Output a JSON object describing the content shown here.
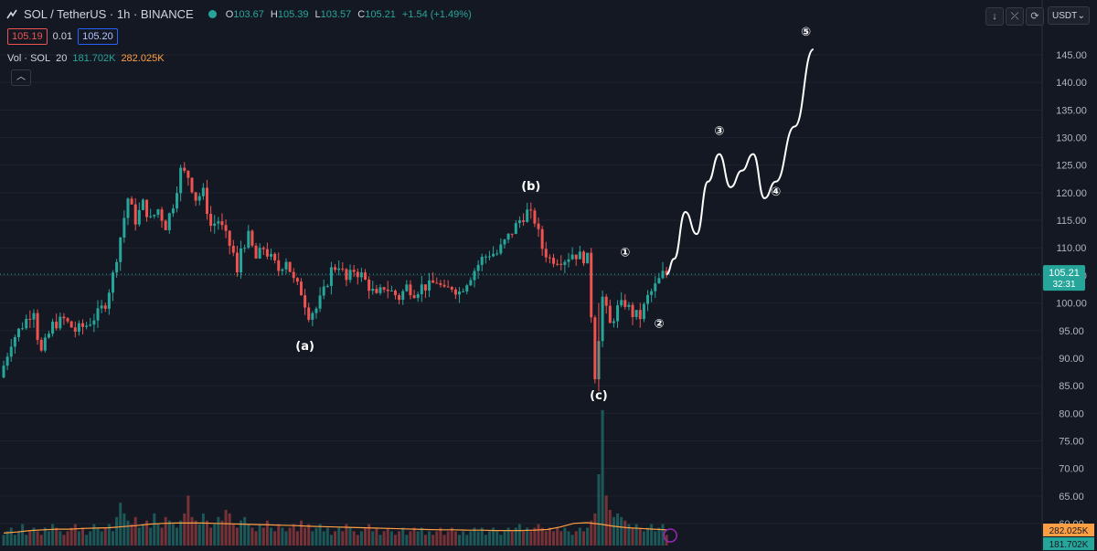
{
  "header": {
    "symbol": "SOL / TetherUS · 1h · BINANCE",
    "open_label": "O",
    "open": "103.67",
    "high_label": "H",
    "high": "105.39",
    "low_label": "L",
    "low": "103.57",
    "close_label": "C",
    "close": "105.21",
    "change": "+1.54 (+1.49%)"
  },
  "order": {
    "sell": "105.19",
    "spread": "0.01",
    "buy": "105.20"
  },
  "volume_legend": {
    "label": "Vol · SOL",
    "length": "20",
    "vol": "181.702K",
    "ma": "282.025K"
  },
  "toolbar": {
    "currency": "USDT"
  },
  "colors": {
    "background": "#141823",
    "up": "#26a69a",
    "down": "#ef5350",
    "wave_path": "#ffffff",
    "volume_ma": "#ff9f43",
    "last_price_tag": "#26a69a"
  },
  "chart_data": {
    "type": "candlestick",
    "yaxis": {
      "ticks": [
        "145.00",
        "140.00",
        "135.00",
        "130.00",
        "125.00",
        "120.00",
        "115.00",
        "110.00",
        "105.00",
        "100.00",
        "95.00",
        "90.00",
        "85.00",
        "80.00",
        "75.00",
        "70.00",
        "65.00",
        "60.00"
      ],
      "ylim": [
        56,
        151
      ]
    },
    "last_price": {
      "value": "105.21",
      "countdown": "32:31"
    },
    "volume_tags": {
      "ma": "282.025K",
      "vol": "181.702K"
    },
    "price_path": [
      [
        0,
        86.5
      ],
      [
        3,
        93
      ],
      [
        6,
        96
      ],
      [
        9,
        99
      ],
      [
        10,
        94
      ],
      [
        11,
        91
      ],
      [
        14,
        96
      ],
      [
        17,
        97
      ],
      [
        20,
        95
      ],
      [
        23,
        96
      ],
      [
        26,
        98
      ],
      [
        28,
        100
      ],
      [
        30,
        105
      ],
      [
        32,
        112
      ],
      [
        34,
        119
      ],
      [
        36,
        115
      ],
      [
        38,
        118
      ],
      [
        40,
        115
      ],
      [
        42,
        117
      ],
      [
        44,
        114
      ],
      [
        46,
        118
      ],
      [
        48,
        124
      ],
      [
        50,
        123
      ],
      [
        52,
        119
      ],
      [
        54,
        120
      ],
      [
        56,
        114
      ],
      [
        58,
        115
      ],
      [
        60,
        112
      ],
      [
        62,
        109
      ],
      [
        63,
        105
      ],
      [
        64,
        110
      ],
      [
        66,
        112
      ],
      [
        68,
        108
      ],
      [
        70,
        110
      ],
      [
        72,
        108
      ],
      [
        74,
        106
      ],
      [
        76,
        108
      ],
      [
        78,
        104
      ],
      [
        80,
        102
      ],
      [
        82,
        98
      ],
      [
        84,
        99
      ],
      [
        86,
        102
      ],
      [
        88,
        106
      ],
      [
        90,
        107
      ],
      [
        92,
        104
      ],
      [
        94,
        106
      ],
      [
        96,
        105
      ],
      [
        98,
        103
      ],
      [
        100,
        101
      ],
      [
        102,
        103
      ],
      [
        104,
        102
      ],
      [
        106,
        101
      ],
      [
        108,
        103
      ],
      [
        110,
        102
      ],
      [
        112,
        103
      ],
      [
        114,
        103
      ],
      [
        116,
        104
      ],
      [
        118,
        102
      ],
      [
        120,
        103
      ],
      [
        122,
        102
      ],
      [
        124,
        104
      ],
      [
        126,
        106
      ],
      [
        128,
        108
      ],
      [
        130,
        109
      ],
      [
        132,
        109
      ],
      [
        134,
        111
      ],
      [
        136,
        113
      ],
      [
        138,
        115
      ],
      [
        140,
        116.5
      ],
      [
        142,
        115
      ],
      [
        144,
        110
      ],
      [
        146,
        108
      ],
      [
        148,
        108
      ],
      [
        150,
        108
      ],
      [
        152,
        109
      ],
      [
        154,
        108.5
      ],
      [
        156,
        108
      ],
      [
        157,
        98
      ],
      [
        158,
        87
      ],
      [
        159,
        94
      ],
      [
        160,
        101
      ],
      [
        162,
        96
      ],
      [
        164,
        99
      ],
      [
        166,
        100
      ],
      [
        168,
        98
      ],
      [
        170,
        97.5
      ],
      [
        172,
        101
      ],
      [
        174,
        103
      ],
      [
        176,
        105.2
      ]
    ],
    "volume": [
      3,
      4,
      5,
      3,
      4,
      6,
      3,
      4,
      5,
      4,
      3,
      5,
      4,
      6,
      5,
      4,
      3,
      4,
      5,
      6,
      4,
      5,
      3,
      4,
      6,
      5,
      4,
      5,
      6,
      4,
      8,
      12,
      9,
      7,
      6,
      8,
      5,
      6,
      7,
      5,
      9,
      6,
      5,
      8,
      7,
      6,
      5,
      7,
      9,
      14,
      8,
      7,
      6,
      9,
      7,
      5,
      6,
      8,
      7,
      10,
      9,
      6,
      5,
      7,
      8,
      6,
      5,
      4,
      6,
      5,
      7,
      5,
      4,
      6,
      5,
      4,
      5,
      6,
      4,
      7,
      5,
      6,
      4,
      5,
      6,
      4,
      5,
      3,
      4,
      5,
      4,
      6,
      5,
      4,
      3,
      4,
      5,
      6,
      4,
      5,
      3,
      4,
      5,
      4,
      3,
      4,
      5,
      3,
      4,
      5,
      4,
      5,
      3,
      4,
      3,
      4,
      5,
      3,
      4,
      5,
      4,
      3,
      4,
      3,
      4,
      5,
      4,
      5,
      3,
      4,
      5,
      4,
      3,
      4,
      5,
      4,
      5,
      6,
      4,
      5,
      4,
      5,
      6,
      5,
      4,
      5,
      4,
      5,
      4,
      5,
      4,
      3,
      4,
      5,
      4,
      5,
      7,
      9,
      20,
      38,
      14,
      10,
      8,
      9,
      8,
      7,
      6,
      5,
      6,
      5,
      4,
      5,
      6,
      4,
      5,
      6
    ],
    "volume_ma": [
      3.5,
      3.8,
      4.2,
      4.4,
      4.6,
      4.6,
      4.8,
      4.9,
      5.0,
      5.3,
      5.6,
      6.0,
      6.2,
      6.3,
      6.3,
      6.3,
      6.2,
      6.1,
      6.0,
      5.9,
      5.8,
      5.7,
      5.6,
      5.4,
      5.3,
      5.2,
      5.1,
      5.0,
      4.9,
      4.8,
      4.7,
      4.6,
      4.5,
      4.4,
      4.4,
      4.3,
      4.3,
      4.2,
      4.2,
      4.2,
      4.3,
      4.5,
      5.2,
      6.2,
      6.4,
      6.0,
      5.4,
      5.0,
      4.8,
      4.6,
      4.4
    ],
    "projection": [
      [
        176,
        105.2
      ],
      [
        178,
        108
      ],
      [
        181,
        116.5
      ],
      [
        184,
        112.5
      ],
      [
        187,
        122
      ],
      [
        190,
        127
      ],
      [
        193,
        121
      ],
      [
        196,
        124
      ],
      [
        199,
        127
      ],
      [
        202,
        119
      ],
      [
        205,
        122
      ],
      [
        210,
        132
      ],
      [
        215,
        146
      ]
    ],
    "labels": [
      {
        "text": "(a)",
        "x": 80,
        "price": 91.5
      },
      {
        "text": "(b)",
        "x": 140,
        "price": 120.5
      },
      {
        "text": "(c)",
        "x": 158,
        "price": 82.5
      },
      {
        "text": "①",
        "x": 165,
        "price": 108.5
      },
      {
        "text": "②",
        "x": 174,
        "price": 95.5
      },
      {
        "text": "③",
        "x": 190,
        "price": 130.5
      },
      {
        "text": "④",
        "x": 205,
        "price": 119.5
      },
      {
        "text": "⑤",
        "x": 213,
        "price": 148.5
      }
    ]
  }
}
